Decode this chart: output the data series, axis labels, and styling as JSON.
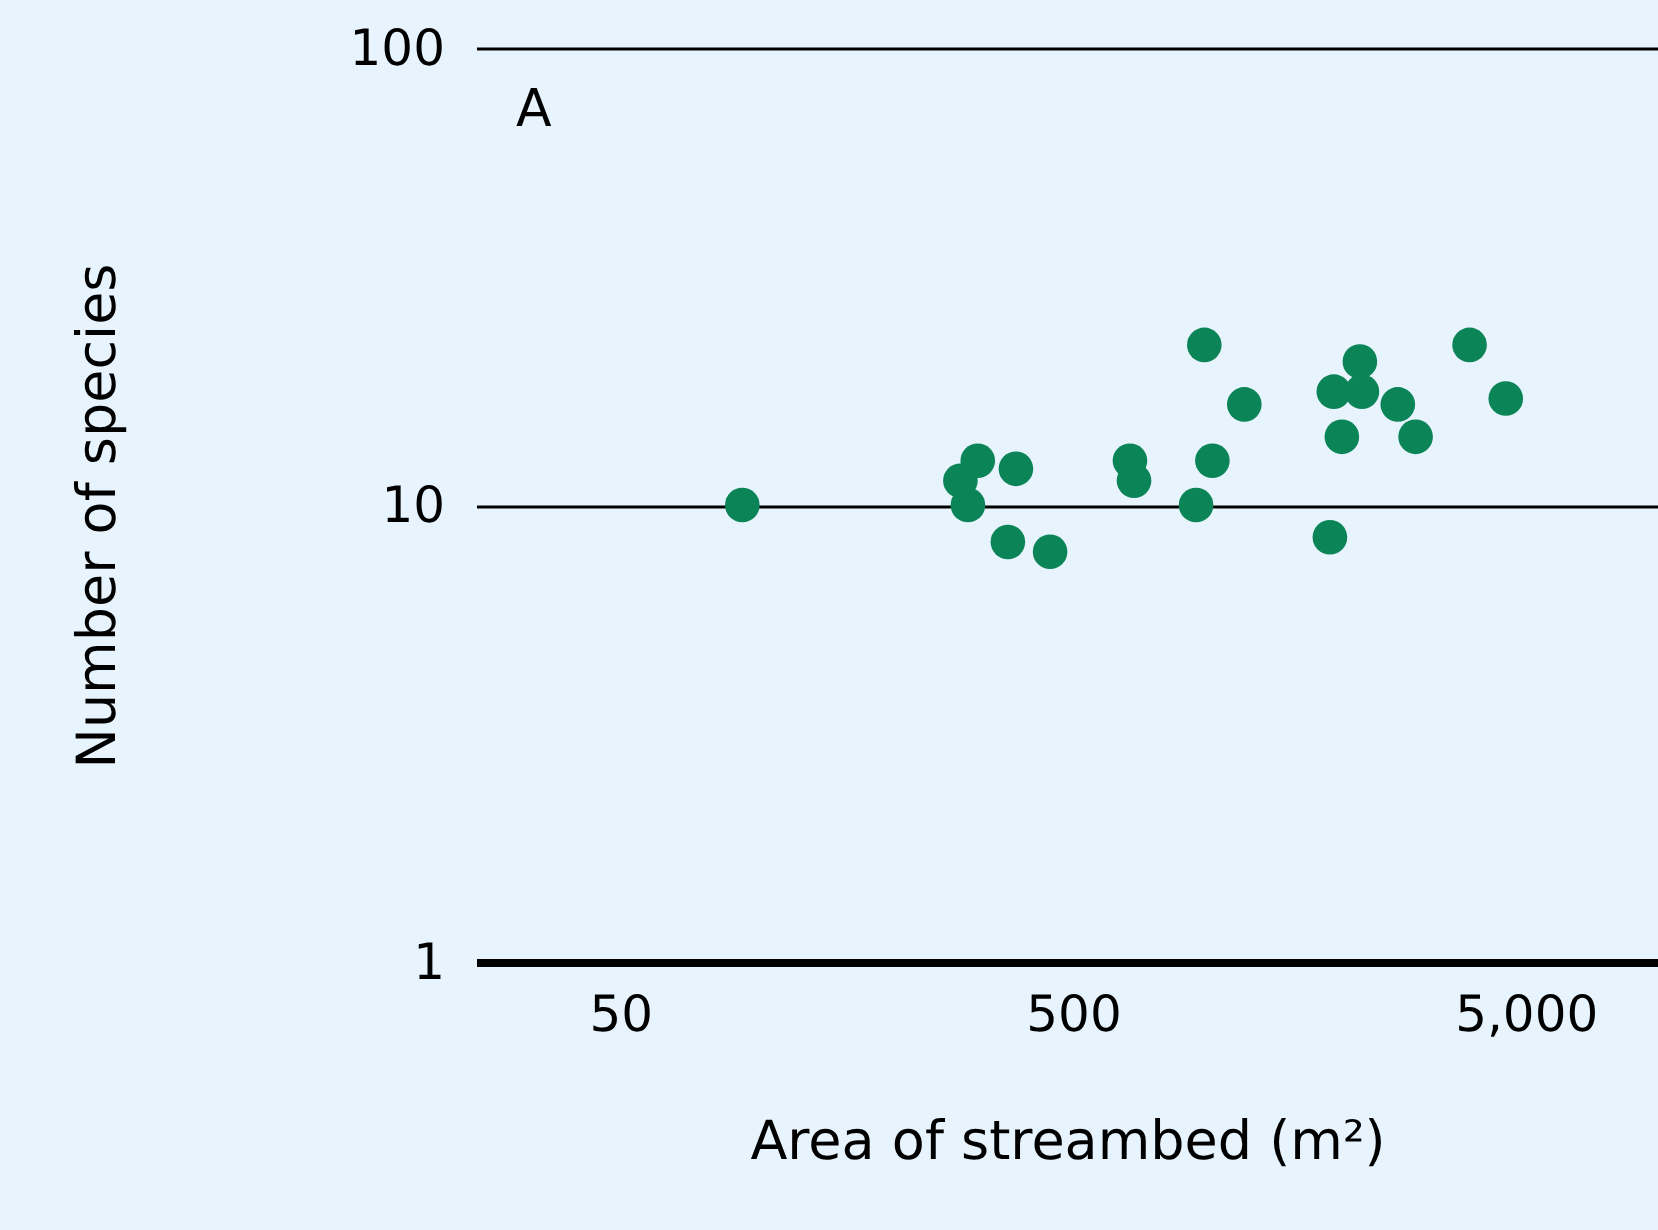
{
  "chart_data": {
    "type": "scatter",
    "xlabel": "Area of streambed (m²)",
    "ylabel": "Number of species",
    "annotations": [
      "A"
    ],
    "x": [
      93,
      282,
      293,
      308,
      374,
      359,
      445,
      668,
      682,
      935,
      975,
      1016,
      1195,
      1847,
      1884,
      1963,
      2151,
      2174,
      2609,
      2856,
      3758,
      4518
    ],
    "series": [
      {
        "color": "#0b8457",
        "values": [
          10,
          11.3,
          10,
          12.5,
          12,
          8.3,
          7.9,
          12.5,
          11.3,
          10,
          22.4,
          12.5,
          16.6,
          8.5,
          17.7,
          14.1,
          20.6,
          17.7,
          16.6,
          14.1,
          22.4,
          17.1
        ]
      }
    ],
    "log": "xy",
    "xlim": [
      24,
      9800
    ],
    "ylim": [
      1,
      100
    ],
    "xticks": [
      50,
      500,
      {
        "value": 5000,
        "label": "5,000"
      }
    ],
    "yticks": [
      1,
      10,
      100
    ],
    "grid": "y",
    "marker": "circle"
  }
}
